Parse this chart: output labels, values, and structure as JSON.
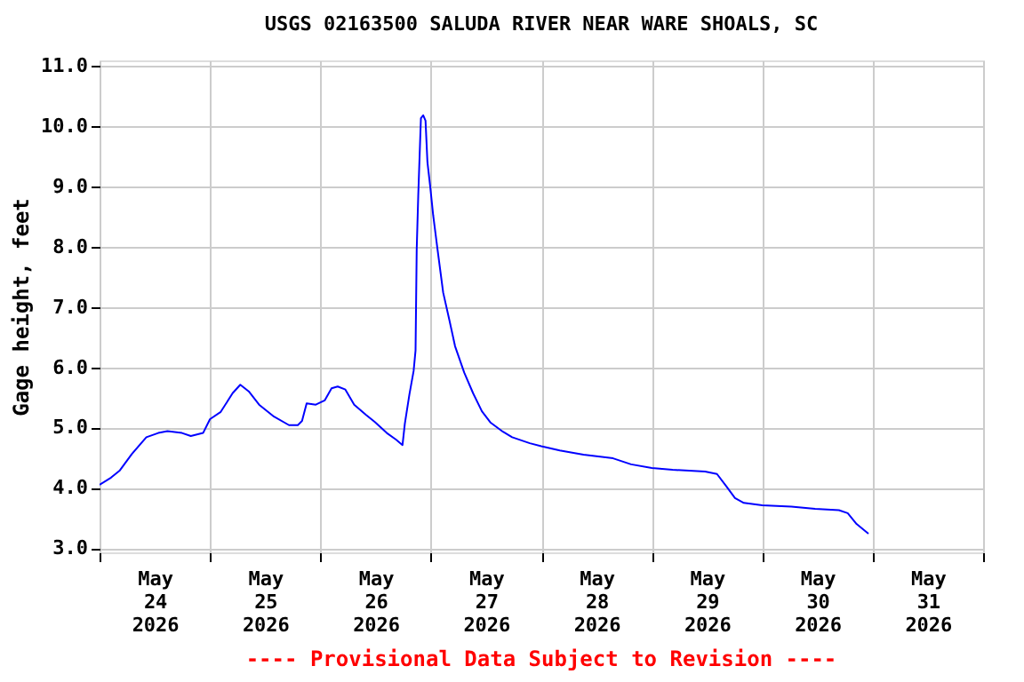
{
  "chart_data": {
    "type": "line",
    "title": "USGS 02163500 SALUDA RIVER NEAR WARE SHOALS, SC",
    "ylabel": "Gage height, feet",
    "annotations": [
      "---- Provisional Data Subject to Revision ----"
    ],
    "x": [
      "2026-05-24T00:00",
      "2026-05-24T02:30",
      "2026-05-24T04:25",
      "2026-05-24T07:00",
      "2026-05-24T10:10",
      "2026-05-24T12:45",
      "2026-05-24T14:45",
      "2026-05-24T17:55",
      "2026-05-24T19:50",
      "2026-05-24T22:30",
      "2026-05-25T00:00",
      "2026-05-25T02:20",
      "2026-05-25T04:55",
      "2026-05-25T06:35",
      "2026-05-25T08:25",
      "2026-05-25T10:40",
      "2026-05-25T13:55",
      "2026-05-25T17:10",
      "2026-05-25T19:05",
      "2026-05-25T20:00",
      "2026-05-25T21:00",
      "2026-05-25T23:00",
      "2026-05-26T00:55",
      "2026-05-26T02:25",
      "2026-05-26T03:45",
      "2026-05-26T05:25",
      "2026-05-26T07:20",
      "2026-05-26T09:55",
      "2026-05-26T11:50",
      "2026-05-26T14:25",
      "2026-05-26T16:25",
      "2026-05-26T17:50",
      "2026-05-26T18:20",
      "2026-05-26T19:20",
      "2026-05-26T20:15",
      "2026-05-26T20:40",
      "2026-05-26T20:55",
      "2026-05-26T21:15",
      "2026-05-26T21:50",
      "2026-05-26T22:20",
      "2026-05-26T22:50",
      "2026-05-26T23:15",
      "2026-05-26T23:50",
      "2026-05-27T00:30",
      "2026-05-27T01:25",
      "2026-05-27T02:40",
      "2026-05-27T04:00",
      "2026-05-27T05:15",
      "2026-05-27T07:15",
      "2026-05-27T09:10",
      "2026-05-27T11:05",
      "2026-05-27T13:00",
      "2026-05-27T15:40",
      "2026-05-27T17:40",
      "2026-05-27T21:30",
      "2026-05-28T00:00",
      "2026-05-28T04:00",
      "2026-05-28T09:10",
      "2026-05-28T15:35",
      "2026-05-28T19:30",
      "2026-05-29T00:00",
      "2026-05-29T04:30",
      "2026-05-29T11:35",
      "2026-05-29T14:10",
      "2026-05-29T16:10",
      "2026-05-29T18:05",
      "2026-05-29T20:00",
      "2026-05-30T00:00",
      "2026-05-30T06:20",
      "2026-05-30T11:30",
      "2026-05-30T16:40",
      "2026-05-30T18:35",
      "2026-05-30T20:30",
      "2026-05-30T23:05"
    ],
    "series": [
      {
        "color": "#0000ff",
        "values": [
          4.05,
          4.17,
          4.29,
          4.56,
          4.84,
          4.91,
          4.94,
          4.91,
          4.86,
          4.91,
          5.14,
          5.26,
          5.57,
          5.71,
          5.6,
          5.38,
          5.18,
          5.04,
          5.04,
          5.11,
          5.4,
          5.38,
          5.45,
          5.65,
          5.68,
          5.63,
          5.38,
          5.21,
          5.09,
          4.91,
          4.8,
          4.71,
          5.06,
          5.55,
          5.94,
          6.28,
          7.95,
          8.84,
          10.13,
          10.18,
          10.09,
          9.4,
          9.01,
          8.52,
          7.97,
          7.24,
          6.79,
          6.35,
          5.91,
          5.57,
          5.27,
          5.08,
          4.93,
          4.84,
          4.74,
          4.69,
          4.62,
          4.55,
          4.49,
          4.39,
          4.33,
          4.3,
          4.27,
          4.23,
          4.03,
          3.83,
          3.75,
          3.71,
          3.69,
          3.65,
          3.63,
          3.58,
          3.4,
          3.24
        ]
      }
    ],
    "xlim": [
      "2026-05-24T00:00",
      "2026-06-01T00:00"
    ],
    "xticks": [
      {
        "value": "2026-05-24T00:00",
        "label": null
      },
      {
        "value": "2026-05-24T12:00",
        "label": "May\n24\n2026"
      },
      {
        "value": "2026-05-25T00:00",
        "label": null
      },
      {
        "value": "2026-05-25T12:00",
        "label": "May\n25\n2026"
      },
      {
        "value": "2026-05-26T00:00",
        "label": null
      },
      {
        "value": "2026-05-26T12:00",
        "label": "May\n26\n2026"
      },
      {
        "value": "2026-05-27T00:00",
        "label": null
      },
      {
        "value": "2026-05-27T12:00",
        "label": "May\n27\n2026"
      },
      {
        "value": "2026-05-28T00:00",
        "label": null
      },
      {
        "value": "2026-05-28T12:00",
        "label": "May\n28\n2026"
      },
      {
        "value": "2026-05-29T00:00",
        "label": null
      },
      {
        "value": "2026-05-29T12:00",
        "label": "May\n29\n2026"
      },
      {
        "value": "2026-05-30T00:00",
        "label": null
      },
      {
        "value": "2026-05-30T12:00",
        "label": "May\n30\n2026"
      },
      {
        "value": "2026-05-31T00:00",
        "label": null
      },
      {
        "value": "2026-05-31T12:00",
        "label": "May\n31\n2026"
      },
      {
        "value": "2026-06-01T00:00",
        "label": null
      }
    ],
    "ylim": [
      2.93,
      11.09
    ],
    "yticks": [
      {
        "value": 3,
        "label": "3.0"
      },
      {
        "value": 4,
        "label": "4.0"
      },
      {
        "value": 5,
        "label": "5.0"
      },
      {
        "value": 6,
        "label": "6.0"
      },
      {
        "value": 7,
        "label": "7.0"
      },
      {
        "value": 8,
        "label": "8.0"
      },
      {
        "value": 9,
        "label": "9.0"
      },
      {
        "value": 10,
        "label": "10.0"
      },
      {
        "value": 11,
        "label": "11.0"
      }
    ],
    "grid": true,
    "line_style": "solid",
    "marker": "none"
  }
}
